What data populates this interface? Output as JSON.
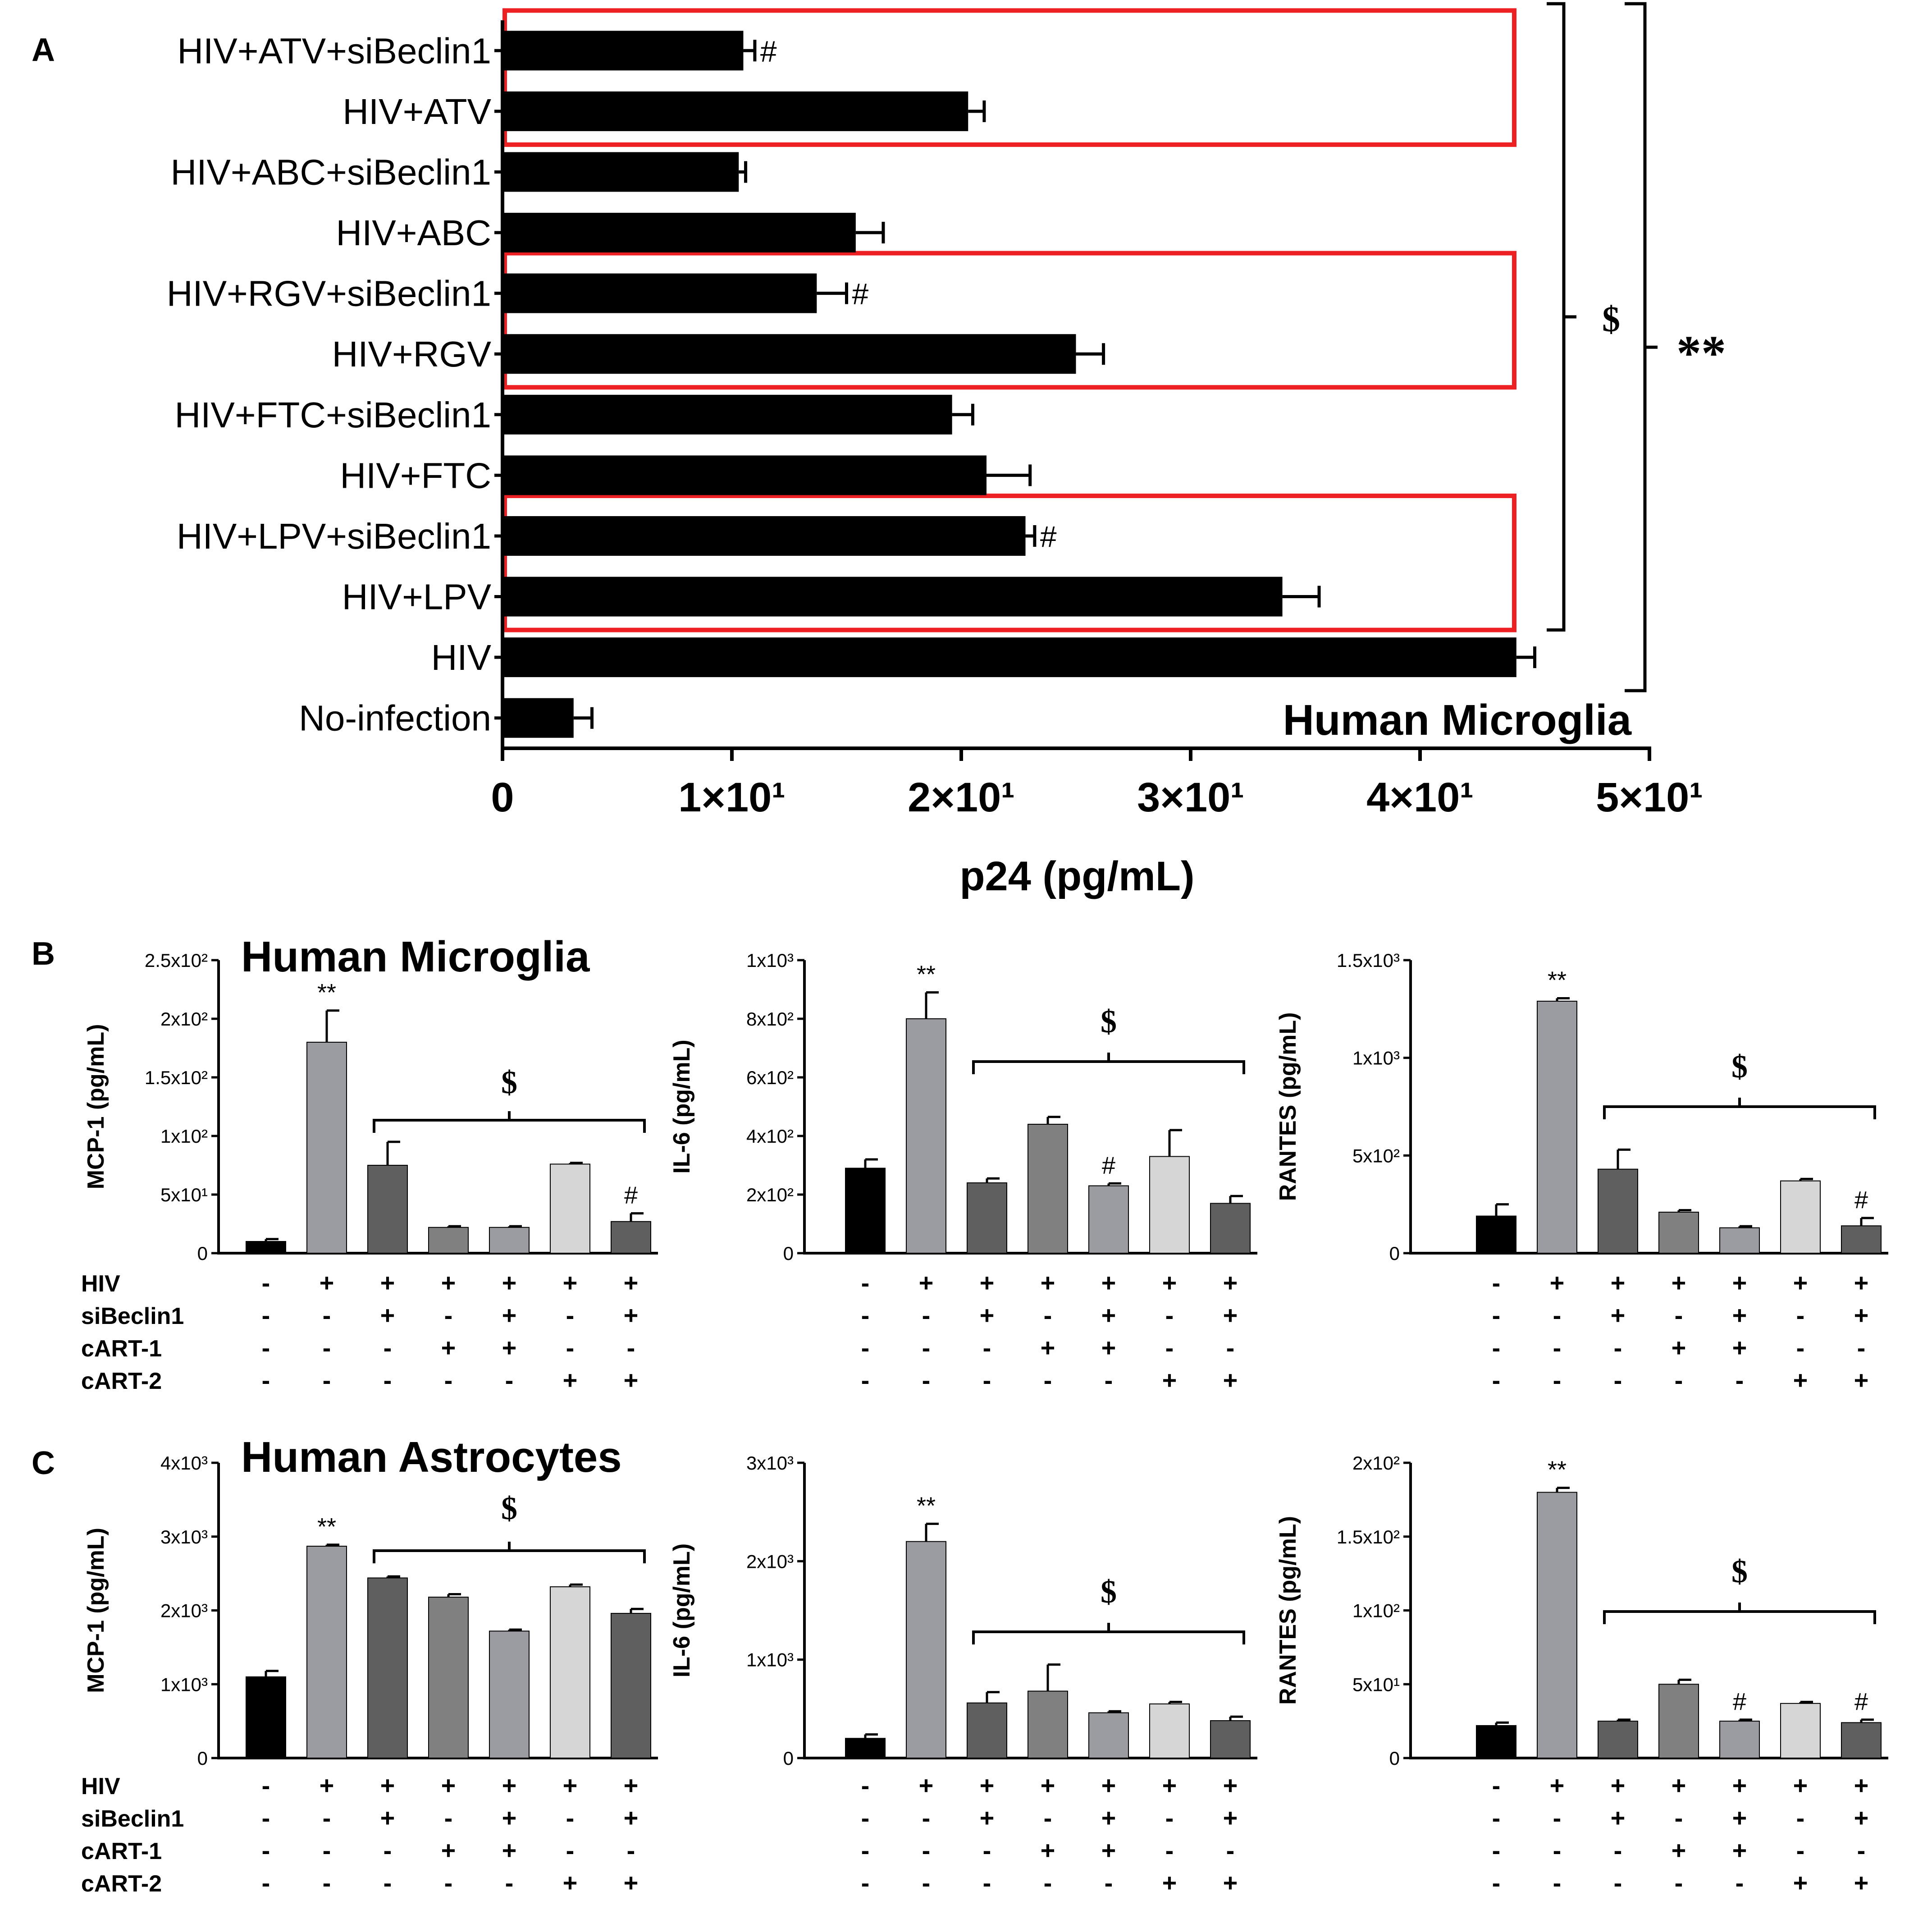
{
  "panel_labels": {
    "a": "A",
    "b": "B",
    "c": "C"
  },
  "colors": {
    "black": "#000000",
    "dark_gray": "#5f5f5f",
    "mid_gray": "#9b9ba2",
    "gray": "#808080",
    "light_gray": "#d6d6d6",
    "highlight_red": "#ed2024"
  },
  "panel_a": {
    "chart_data": {
      "type": "bar",
      "orientation": "horizontal",
      "title": "Human Microglia",
      "xlabel": "p24 (pg/mL)",
      "xlim": [
        0,
        50
      ],
      "tick_labels": [
        "0",
        "1×10¹",
        "2×10¹",
        "3×10¹",
        "4×10¹",
        "5×10¹"
      ],
      "categories": [
        "HIV+ATV+siBeclin1",
        "HIV+ATV",
        "HIV+ABC+siBeclin1",
        "HIV+ABC",
        "HIV+RGV+siBeclin1",
        "HIV+RGV",
        "HIV+FTC+siBeclin1",
        "HIV+FTC",
        "HIV+LPV+siBeclin1",
        "HIV+LPV",
        "HIV",
        "No-infection"
      ],
      "values": [
        10.5,
        20.3,
        10.3,
        15.4,
        13.7,
        25.0,
        19.6,
        21.1,
        22.8,
        34.0,
        44.2,
        3.1
      ],
      "errors": [
        0.5,
        0.7,
        0.3,
        1.2,
        1.3,
        1.2,
        0.9,
        1.9,
        0.4,
        1.6,
        0.8,
        0.8
      ],
      "marks": [
        "#",
        "",
        "",
        "",
        "#",
        "",
        "",
        "",
        "#",
        "",
        "",
        ""
      ],
      "highlight_boxes": [
        [
          0,
          1
        ],
        [
          4,
          5
        ],
        [
          8,
          9
        ]
      ],
      "brackets": [
        {
          "label": "$",
          "from": 0,
          "to": 9
        },
        {
          "label": "**",
          "from": 0,
          "to": 10
        }
      ]
    }
  },
  "treatment_table": {
    "row_labels": [
      "HIV",
      "siBeclin1",
      "cART-1",
      "cART-2"
    ],
    "rows": [
      [
        "-",
        "+",
        "+",
        "+",
        "+",
        "+",
        "+"
      ],
      [
        "-",
        "-",
        "+",
        "-",
        "+",
        "-",
        "+"
      ],
      [
        "-",
        "-",
        "-",
        "+",
        "+",
        "-",
        "-"
      ],
      [
        "-",
        "-",
        "-",
        "-",
        "-",
        "+",
        "+"
      ]
    ]
  },
  "panel_b": {
    "side_title": "Human Microglia",
    "chart_data": [
      {
        "type": "bar",
        "ylabel": "MCP-1 (pg/mL)",
        "ylim": [
          0,
          250
        ],
        "tick_labels": [
          "0",
          "5x10¹",
          "1x10²",
          "1.5x10²",
          "2x10²",
          "2.5x10²"
        ],
        "values": [
          10,
          180,
          75,
          22,
          22,
          76,
          27
        ],
        "errors": [
          2,
          27,
          20,
          1,
          1,
          1,
          7
        ],
        "marks": [
          "",
          "**",
          "",
          "",
          "",
          "",
          "#"
        ],
        "bracket": {
          "label": "$",
          "from": 2,
          "to": 6
        }
      },
      {
        "type": "bar",
        "ylabel": "IL-6 (pg/mL)",
        "ylim": [
          0,
          1000
        ],
        "tick_labels": [
          "0",
          "2x10²",
          "4x10²",
          "6x10²",
          "8x10²",
          "1x10³"
        ],
        "values": [
          290,
          800,
          240,
          440,
          230,
          330,
          170
        ],
        "errors": [
          30,
          90,
          15,
          25,
          8,
          90,
          25
        ],
        "marks": [
          "",
          "**",
          "",
          "",
          "#",
          "",
          ""
        ],
        "bracket": {
          "label": "$",
          "from": 2,
          "to": 6
        }
      },
      {
        "type": "bar",
        "ylabel": "RANTES (pg/mL)",
        "ylim": [
          0,
          1500
        ],
        "tick_labels": [
          "0",
          "5x10²",
          "1x10³",
          "1.5x10³"
        ],
        "values": [
          190,
          1290,
          430,
          210,
          130,
          370,
          140
        ],
        "errors": [
          60,
          15,
          100,
          10,
          8,
          10,
          40
        ],
        "marks": [
          "",
          "**",
          "",
          "",
          "",
          "",
          "#"
        ],
        "bracket": {
          "label": "$",
          "from": 2,
          "to": 6
        }
      }
    ]
  },
  "panel_c": {
    "side_title": "Human Astrocytes",
    "chart_data": [
      {
        "type": "bar",
        "ylabel": "MCP-1 (pg/mL)",
        "ylim": [
          0,
          4000
        ],
        "tick_labels": [
          "0",
          "1x10³",
          "2x10³",
          "3x10³",
          "4x10³"
        ],
        "values": [
          1100,
          2870,
          2440,
          2180,
          1720,
          2320,
          1960
        ],
        "errors": [
          80,
          20,
          20,
          40,
          20,
          30,
          60
        ],
        "marks": [
          "",
          "**",
          "",
          "",
          "",
          "",
          ""
        ],
        "bracket": {
          "label": "$",
          "from": 2,
          "to": 6
        }
      },
      {
        "type": "bar",
        "ylabel": "IL-6 (pg/mL)",
        "ylim": [
          0,
          3000
        ],
        "tick_labels": [
          "0",
          "1x10³",
          "2x10³",
          "3x10³"
        ],
        "values": [
          200,
          2200,
          560,
          680,
          460,
          550,
          380
        ],
        "errors": [
          40,
          180,
          110,
          270,
          15,
          20,
          40
        ],
        "marks": [
          "",
          "**",
          "",
          "",
          "",
          "",
          ""
        ],
        "bracket": {
          "label": "$",
          "from": 2,
          "to": 6
        }
      },
      {
        "type": "bar",
        "ylabel": "RANTES (pg/mL)",
        "ylim": [
          0,
          200
        ],
        "tick_labels": [
          "0",
          "5x10¹",
          "1x10²",
          "1.5x10²",
          "2x10²"
        ],
        "values": [
          22,
          180,
          25,
          50,
          25,
          37,
          24
        ],
        "errors": [
          2,
          3,
          1,
          3,
          1,
          1,
          2
        ],
        "marks": [
          "",
          "**",
          "",
          "",
          "#",
          "",
          "#"
        ],
        "bracket": {
          "label": "$",
          "from": 2,
          "to": 6
        }
      }
    ]
  }
}
